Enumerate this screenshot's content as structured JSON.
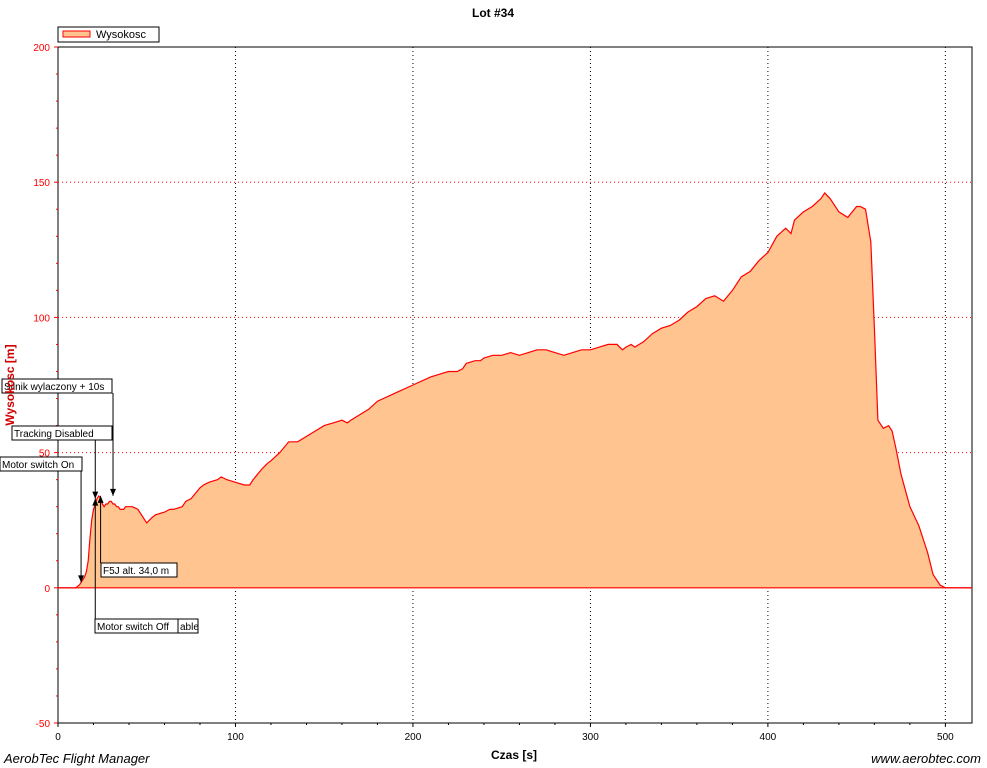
{
  "chart_data": {
    "type": "area",
    "title": "Lot #34",
    "xlabel": "Czas [s]",
    "ylabel": "Wysokosc [m]",
    "xlim": [
      0,
      515
    ],
    "ylim": [
      -50,
      200
    ],
    "xticks": [
      0,
      100,
      200,
      300,
      400,
      500
    ],
    "yticks": [
      -50,
      0,
      50,
      100,
      150,
      200
    ],
    "grid": true,
    "legend": {
      "position": "top-left",
      "entries": [
        "Wysokosc"
      ]
    },
    "colors": {
      "line": "#ff0000",
      "fill": "#ffc48f",
      "grid_x": "#000000",
      "grid_y": "#ff0000",
      "tick_y": "#ff0000"
    },
    "series": [
      {
        "name": "Wysokosc",
        "x": [
          0,
          10,
          12,
          13,
          14,
          15,
          16,
          17,
          18,
          19,
          20,
          21,
          22,
          23,
          24,
          25,
          26,
          27,
          28,
          29,
          30,
          31,
          32,
          33,
          34,
          35,
          36,
          37,
          38,
          39,
          40,
          42,
          45,
          50,
          53,
          55,
          60,
          63,
          65,
          70,
          72,
          75,
          80,
          82,
          85,
          90,
          92,
          95,
          100,
          105,
          108,
          110,
          115,
          118,
          120,
          125,
          130,
          135,
          140,
          145,
          150,
          155,
          160,
          163,
          165,
          170,
          175,
          180,
          190,
          200,
          210,
          215,
          220,
          225,
          228,
          230,
          235,
          238,
          240,
          245,
          250,
          255,
          260,
          265,
          270,
          275,
          280,
          285,
          290,
          295,
          300,
          305,
          310,
          315,
          318,
          320,
          323,
          325,
          330,
          335,
          340,
          345,
          350,
          355,
          360,
          365,
          370,
          375,
          380,
          385,
          390,
          395,
          400,
          405,
          410,
          413,
          415,
          420,
          425,
          430,
          432,
          435,
          440,
          445,
          450,
          452,
          455,
          458,
          460,
          462,
          465,
          468,
          470,
          472,
          475,
          480,
          485,
          490,
          493,
          495,
          497,
          500,
          505,
          510,
          515
        ],
        "y": [
          0,
          0,
          1,
          2,
          3,
          4,
          6,
          10,
          18,
          25,
          29,
          31,
          33,
          34,
          33,
          31,
          30,
          31,
          31,
          32,
          32,
          31,
          31,
          30,
          30,
          29,
          29,
          29,
          30,
          30,
          30,
          30,
          29,
          24,
          26,
          27,
          28,
          29,
          29,
          30,
          32,
          33,
          37,
          38,
          39,
          40,
          41,
          40,
          39,
          38,
          38,
          40,
          44,
          46,
          47,
          50,
          54,
          54,
          56,
          58,
          60,
          61,
          62,
          61,
          62,
          64,
          66,
          69,
          72,
          75,
          78,
          79,
          80,
          80,
          81,
          83,
          84,
          84,
          85,
          86,
          86,
          87,
          86,
          87,
          88,
          88,
          87,
          86,
          87,
          88,
          88,
          89,
          90,
          90,
          88,
          89,
          90,
          89,
          91,
          94,
          96,
          97,
          99,
          102,
          104,
          107,
          108,
          106,
          110,
          115,
          117,
          121,
          124,
          130,
          133,
          131,
          136,
          139,
          141,
          144,
          146,
          144,
          139,
          137,
          141,
          141,
          140,
          128,
          96,
          62,
          59,
          60,
          58,
          52,
          42,
          30,
          23,
          13,
          5,
          3,
          1,
          0,
          0,
          0,
          0
        ]
      }
    ],
    "annotations": [
      {
        "label": "Silnik wylaczony + 10s",
        "x": 31
      },
      {
        "label": "Tracking Disabled",
        "x": 21
      },
      {
        "label": "Motor switch On",
        "x": 13
      },
      {
        "label": "F5J alt. 34,0 m",
        "x": 24
      },
      {
        "label": "Motor switch Off",
        "x": 21
      },
      {
        "label": "able",
        "x": 31
      }
    ]
  },
  "footer": {
    "left": "AerobTec Flight Manager",
    "right": "www.aerobtec.com"
  }
}
